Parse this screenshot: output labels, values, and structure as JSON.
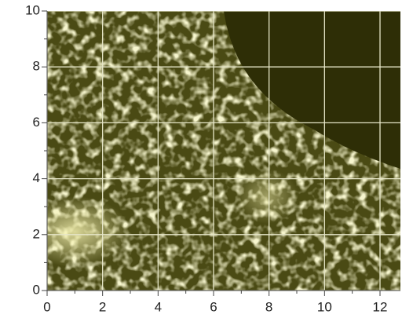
{
  "chart_data": {
    "type": "heatmap",
    "xlim": [
      0,
      12.7
    ],
    "ylim": [
      0,
      10
    ],
    "xticks": [
      0,
      2,
      4,
      6,
      8,
      10,
      12
    ],
    "yticks": [
      0,
      2,
      4,
      6,
      8,
      10
    ],
    "xminorticks": [
      1,
      3,
      5,
      7,
      9,
      11
    ],
    "yminorticks": [
      1,
      3,
      5,
      7,
      9
    ],
    "grid": true
  }
}
